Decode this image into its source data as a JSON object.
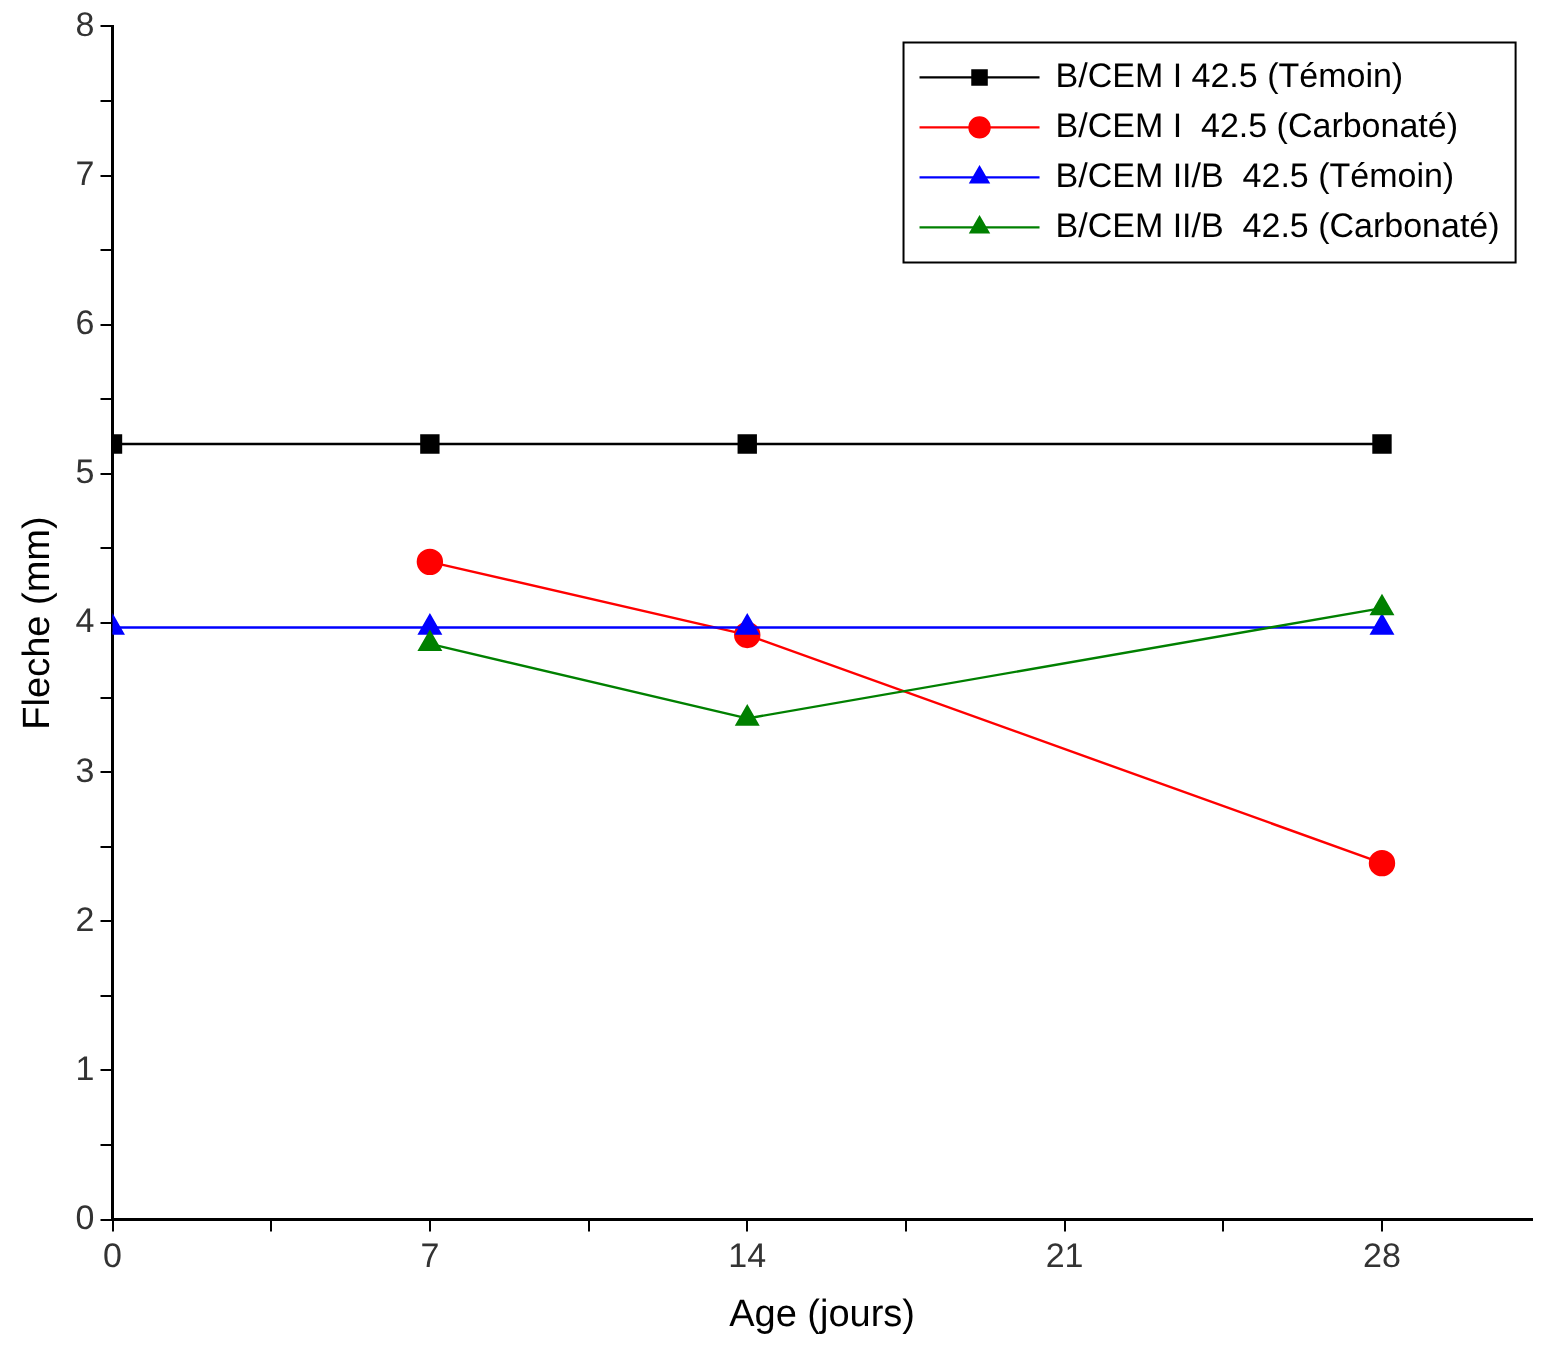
{
  "chart_data": {
    "type": "line",
    "xlabel": "Age (jours)",
    "ylabel": "Fleche (mm)",
    "x": [
      0,
      7,
      14,
      28
    ],
    "series": [
      {
        "name": "B/CEM I 42.5 (Témoin)",
        "color": "#000000",
        "marker": "square",
        "values": [
          5.2,
          5.2,
          5.2,
          5.2
        ]
      },
      {
        "name": "B/CEM I  42.5 (Carbonaté)",
        "color": "#ff0000",
        "marker": "circle",
        "values": [
          null,
          4.41,
          3.92,
          2.39
        ]
      },
      {
        "name": "B/CEM II/B  42.5 (Témoin)",
        "color": "#0000ff",
        "marker": "triangle",
        "values": [
          3.97,
          3.97,
          3.97,
          3.97
        ]
      },
      {
        "name": "B/CEM II/B  42.5 (Carbonaté)",
        "color": "#008000",
        "marker": "triangle",
        "values": [
          null,
          3.86,
          3.36,
          4.1
        ]
      }
    ],
    "xlim": [
      0,
      31.3
    ],
    "xticks": [
      0,
      {
        "value": 3.5,
        "label": null
      },
      7,
      {
        "value": 10.5,
        "label": null
      },
      14,
      {
        "value": 17.5,
        "label": null
      },
      21,
      {
        "value": 24.5,
        "label": null
      },
      28
    ],
    "ylim": [
      0,
      8
    ],
    "yticks": [
      0,
      {
        "value": 0.5,
        "label": null
      },
      1,
      {
        "value": 1.5,
        "label": null
      },
      2,
      {
        "value": 2.5,
        "label": null
      },
      3,
      {
        "value": 3.5,
        "label": null
      },
      4,
      {
        "value": 4.5,
        "label": null
      },
      5,
      {
        "value": 5.5,
        "label": null
      },
      6,
      {
        "value": 6.5,
        "label": null
      },
      7,
      {
        "value": 7.5,
        "label": null
      },
      8
    ],
    "grid": false,
    "legend": "top right",
    "line_style": "solid"
  }
}
